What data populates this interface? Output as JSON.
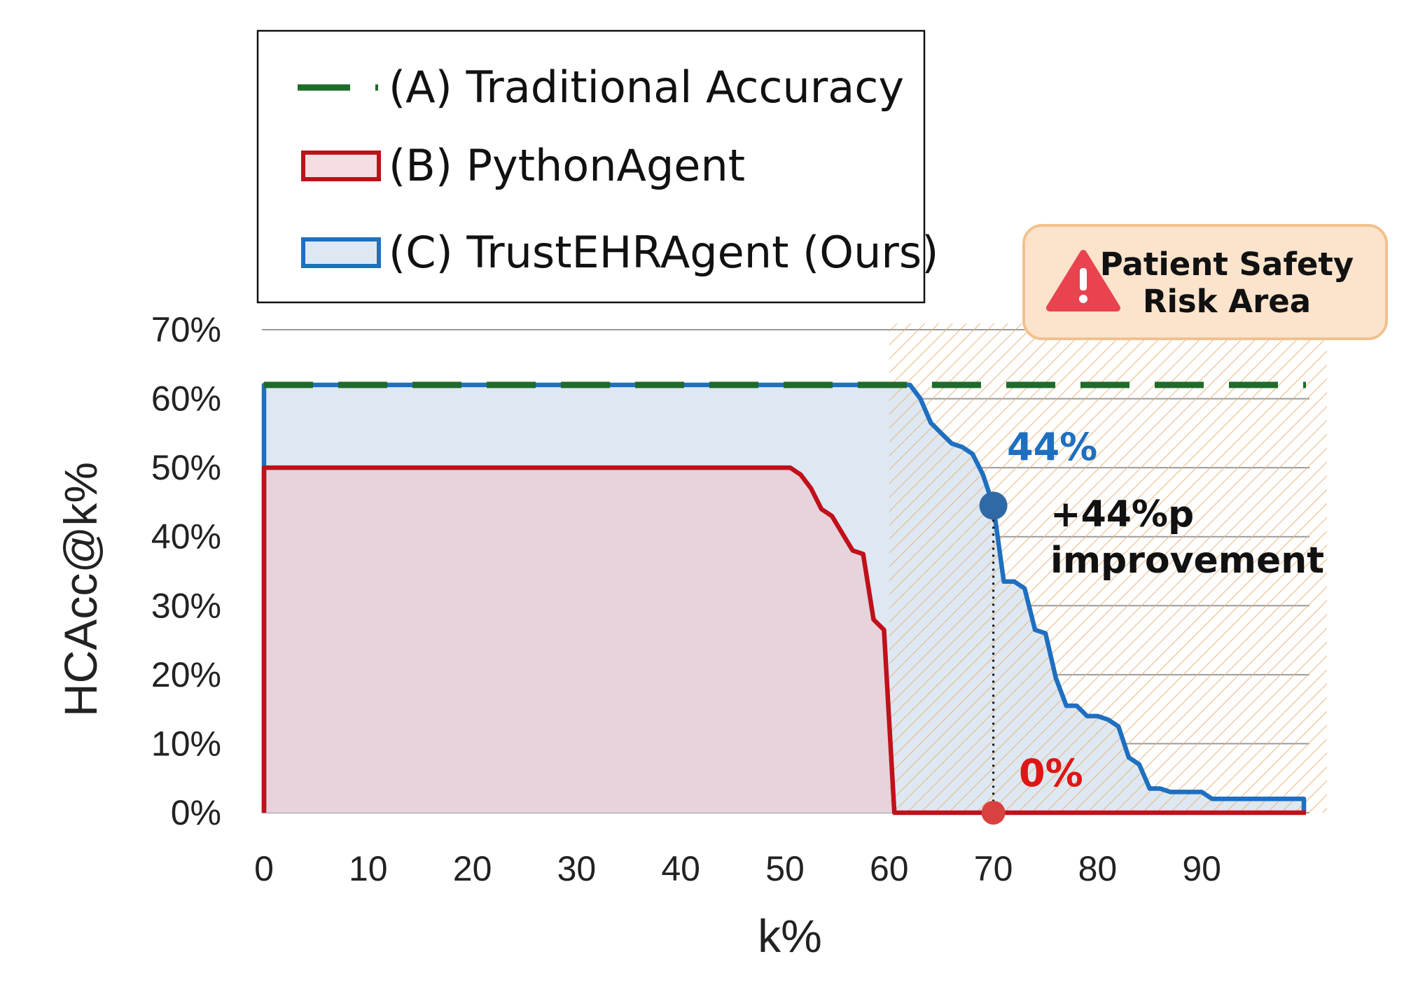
{
  "chart_data": {
    "type": "line",
    "title": "",
    "xlabel": "k%",
    "ylabel": "HCAcc@k%",
    "xlim": [
      0,
      100
    ],
    "ylim": [
      0,
      70
    ],
    "x_ticks": [
      0,
      10,
      20,
      30,
      40,
      50,
      60,
      70,
      80,
      90
    ],
    "x_tick_labels": [
      "0",
      "10",
      "20",
      "30",
      "40",
      "50",
      "60",
      "70",
      "80",
      "90"
    ],
    "y_ticks": [
      0,
      10,
      20,
      30,
      40,
      50,
      60,
      70
    ],
    "y_tick_labels": [
      "0%",
      "10%",
      "20%",
      "30%",
      "40%",
      "50%",
      "60%",
      "70%"
    ],
    "grid": "horizontal",
    "legend_position": "top-left",
    "series": [
      {
        "name": "(A) Traditional Accuracy",
        "style": "dashed",
        "color": "#1e6b2a",
        "x": [
          0,
          100
        ],
        "y": [
          62,
          62
        ]
      },
      {
        "name": "(B) PythonAgent",
        "style": "filled-area",
        "color": "#c0101a",
        "fill": "#e6d3dc",
        "x": [
          0,
          0,
          50.5,
          51.5,
          52.5,
          53.5,
          54.5,
          55.5,
          56.5,
          57.5,
          58.5,
          59.5,
          60.5,
          100
        ],
        "y": [
          0,
          50,
          50,
          49,
          47,
          44,
          43,
          40.5,
          38,
          37.5,
          28,
          26.5,
          0,
          0
        ]
      },
      {
        "name": "(C) TrustEHRAgent (Ours)",
        "style": "filled-area",
        "color": "#1f6fc0",
        "fill": "#dde8f3",
        "x": [
          0,
          0,
          62,
          63,
          64,
          65,
          66,
          67,
          68,
          69,
          70,
          71,
          72,
          73,
          74,
          75,
          76,
          77,
          78,
          79,
          80,
          81,
          82,
          83,
          84,
          85,
          86,
          87,
          88,
          89,
          90,
          91,
          92,
          93,
          94,
          95,
          96,
          97,
          98,
          99,
          99.8,
          99.8
        ],
        "y": [
          0,
          62,
          62,
          60,
          56.5,
          55,
          53.5,
          53,
          52,
          49,
          44.5,
          33.5,
          33.5,
          32.5,
          26.5,
          26,
          19.5,
          15.5,
          15.5,
          14,
          14,
          13.5,
          12.5,
          8,
          7,
          3.5,
          3.5,
          3,
          3,
          3,
          3,
          2,
          2,
          2,
          2,
          2,
          2,
          2,
          2,
          2,
          2,
          0
        ]
      }
    ],
    "risk_area": {
      "x_from": 60,
      "x_to": 100,
      "label_line1": "Patient Safety",
      "label_line2": "Risk Area"
    },
    "annotations": {
      "ours_label": "44%",
      "baseline_label": "0%",
      "improvement_line1": "+44%p",
      "improvement_line2": "improvement",
      "at_x": 70,
      "ours_value": 44.5,
      "baseline_value": 0
    }
  },
  "colors": {
    "traditional": "#1e6b2a",
    "python_agent": "#c0101a",
    "trust_agent": "#1f6fc0",
    "risk_fill": "#fbe3cc",
    "risk_border": "#f2c18e",
    "risk_hatch": "#e8b070",
    "warning_icon": "#e8434f"
  }
}
